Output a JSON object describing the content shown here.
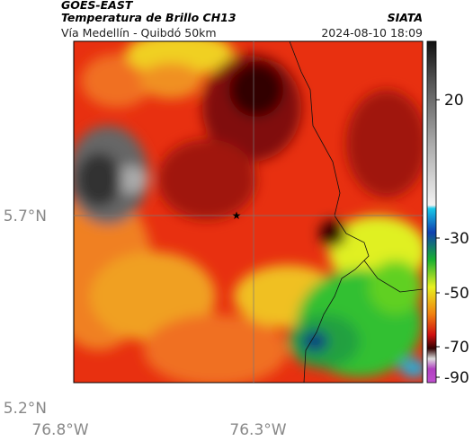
{
  "header": {
    "source": "GOES-EAST",
    "title": "Temperatura de Brillo CH13",
    "org": "SIATA",
    "route": "Vía Medellín - Quibdó 50km",
    "timestamp": "2024-08-10 18:09"
  },
  "axes": {
    "lat_labels": [
      "5.7°N",
      "5.2°N"
    ],
    "lon_labels": [
      "76.8°W",
      "76.3°W"
    ]
  },
  "colorbar": {
    "tick_labels": [
      20,
      -30,
      -50,
      -70,
      -90
    ]
  }
}
